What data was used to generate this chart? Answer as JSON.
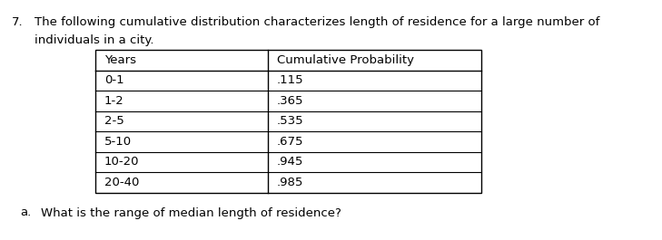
{
  "question_number": "7.",
  "question_line1": "The following cumulative distribution characterizes length of residence for a large number of",
  "question_line2": "individuals in a city.",
  "table_headers": [
    "Years",
    "Cumulative Probability"
  ],
  "table_rows": [
    [
      "0-1",
      ".115"
    ],
    [
      "1-2",
      ".365"
    ],
    [
      "2-5",
      ".535"
    ],
    [
      "5-10",
      ".675"
    ],
    [
      "10-20",
      ".945"
    ],
    [
      "20-40",
      ".985"
    ]
  ],
  "sub_question_a": "a.",
  "sub_question_text": "What is the range of median length of residence?",
  "bg_color": "#ffffff",
  "text_color": "#000000",
  "font_size": 9.5,
  "fig_width": 7.29,
  "fig_height": 2.65,
  "dpi": 100
}
